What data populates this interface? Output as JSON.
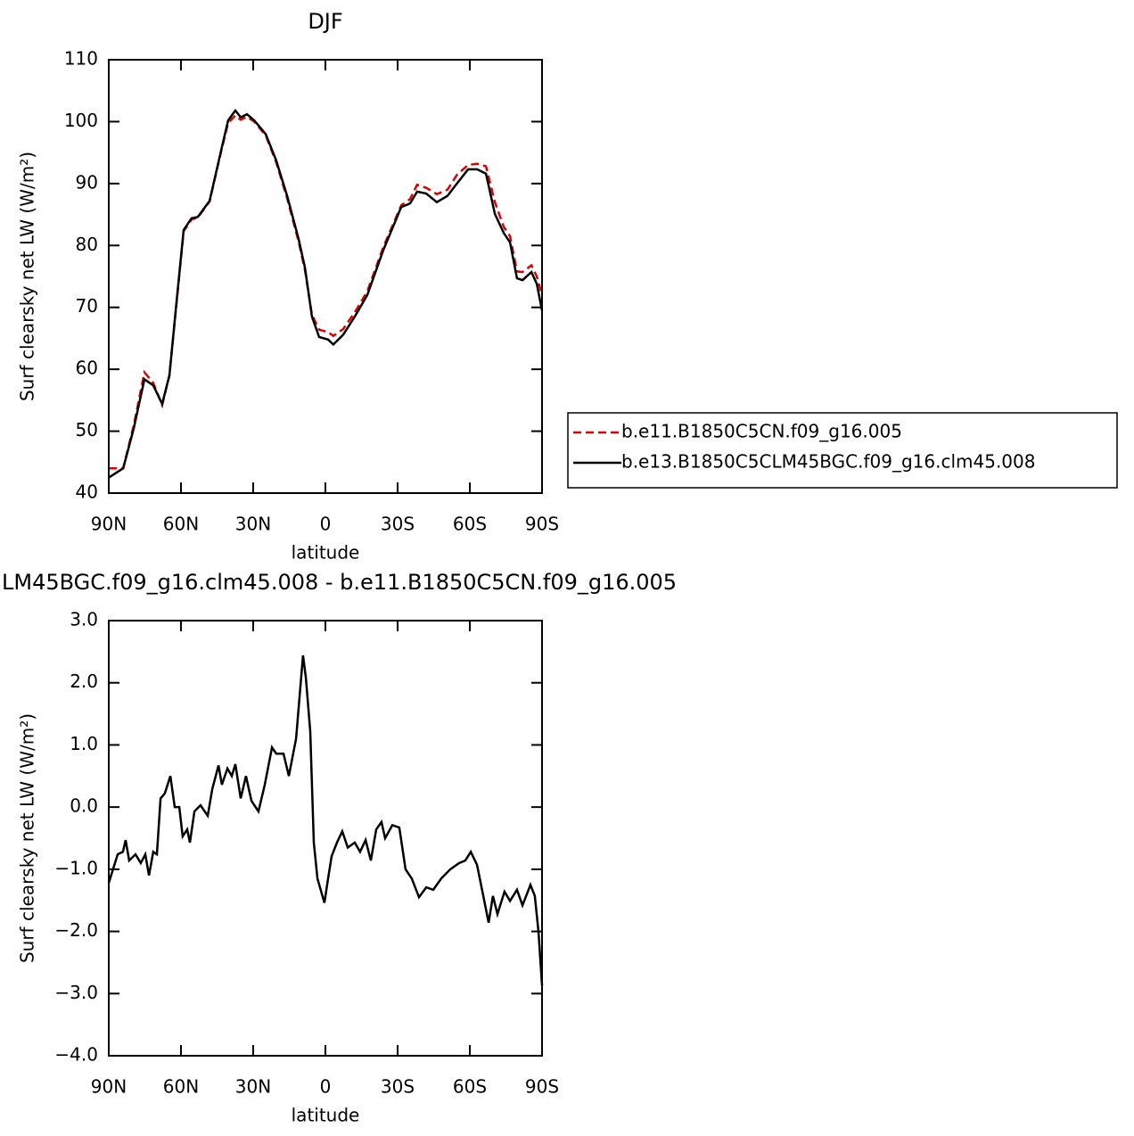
{
  "chart_data": [
    {
      "type": "line",
      "title": "DJF",
      "x_label": "latitude",
      "y_label": "Surf clearsky net LW (W/m²)",
      "xlim": [
        90,
        -90
      ],
      "xticks": [
        {
          "value": 90,
          "label": "90N"
        },
        {
          "value": 60,
          "label": "60N"
        },
        {
          "value": 30,
          "label": "30N"
        },
        0,
        {
          "value": -30,
          "label": "30S"
        },
        {
          "value": -60,
          "label": "60S"
        },
        {
          "value": -90,
          "label": "90S"
        }
      ],
      "ylim": [
        40,
        110
      ],
      "yticks": [
        40,
        50,
        60,
        70,
        80,
        90,
        100,
        110
      ],
      "legend_position": "right",
      "x": [
        90,
        84,
        79.6,
        75.2,
        71.5,
        67.8,
        64.8,
        61.9,
        58.9,
        55.6,
        53,
        48.1,
        43.3,
        40.4,
        37.4,
        35.2,
        32.6,
        29.6,
        24.8,
        20.4,
        15.9,
        11.1,
        8.5,
        5.6,
        2.6,
        -1.1,
        -3.3,
        -7.4,
        -12.2,
        -17.4,
        -24.1,
        -31.5,
        -35.2,
        -38.1,
        -41.9,
        -46.3,
        -50.7,
        -54.8,
        -59.3,
        -63,
        -66.7,
        -70.4,
        -74.1,
        -76.7,
        -79.6,
        -81.9,
        -85.6,
        -87.8,
        -90
      ],
      "series": [
        {
          "name": "b.e11.B1850C5CN.f09_g16.005",
          "color": "#e00000",
          "dashed": true,
          "values": [
            44,
            44,
            51,
            59.5,
            57.8,
            54.2,
            59,
            70.5,
            82.3,
            84.2,
            84.5,
            87.1,
            95.2,
            99.8,
            101,
            100.3,
            100.8,
            100,
            97.8,
            93.4,
            87.6,
            80.6,
            76,
            68.8,
            66.4,
            66,
            65.4,
            66.5,
            69.2,
            72.6,
            79.8,
            86.5,
            87.5,
            89.8,
            89.3,
            88.3,
            89,
            91.5,
            93,
            93.2,
            92.8,
            87,
            83,
            81.5,
            75.8,
            75.7,
            76.8,
            75,
            72
          ]
        },
        {
          "name": "b.e13.B1850C5CLM45BGC.f09_g16.clm45.008",
          "color": "#000000",
          "dashed": false,
          "values": [
            42.5,
            44,
            50.5,
            58.4,
            57.4,
            54.4,
            59,
            70.7,
            82.5,
            84.4,
            84.6,
            87.2,
            95.4,
            100.2,
            101.8,
            100.7,
            101.2,
            100.2,
            98,
            93.7,
            88,
            81,
            76.4,
            68.5,
            65.2,
            64.8,
            64,
            65.6,
            68.5,
            72,
            79.3,
            86.2,
            86.8,
            88.7,
            88.4,
            87,
            88,
            90.1,
            92.3,
            92.3,
            91.6,
            85.1,
            82,
            80.5,
            74.7,
            74.4,
            75.7,
            73.8,
            69.5
          ]
        }
      ]
    },
    {
      "type": "line",
      "title": "LM45BGC.f09_g16.clm45.008 - b.e11.B1850C5CN.f09_g16.005",
      "x_label": "latitude",
      "y_label": "Surf clearsky net LW (W/m²)",
      "xlim": [
        90,
        -90
      ],
      "xticks": [
        {
          "value": 90,
          "label": "90N"
        },
        {
          "value": 60,
          "label": "60N"
        },
        {
          "value": 30,
          "label": "30N"
        },
        0,
        {
          "value": -30,
          "label": "30S"
        },
        {
          "value": -60,
          "label": "60S"
        },
        {
          "value": -90,
          "label": "90S"
        }
      ],
      "ylim": [
        -4,
        3
      ],
      "yticks": [
        {
          "value": -4,
          "label": "−4.0"
        },
        {
          "value": -3,
          "label": "−3.0"
        },
        {
          "value": -2,
          "label": "−2.0"
        },
        {
          "value": -1,
          "label": "−1.0"
        },
        {
          "value": 0,
          "label": "0.0"
        },
        {
          "value": 1,
          "label": "1.0"
        },
        {
          "value": 2,
          "label": "2.0"
        },
        {
          "value": 3,
          "label": "3.0"
        }
      ],
      "x": [
        90,
        86.3,
        84.1,
        83,
        81.5,
        78.9,
        76.7,
        74.8,
        73.3,
        71.5,
        70,
        68.5,
        66.7,
        64.4,
        62.6,
        60.7,
        59.3,
        57.4,
        56.3,
        54.4,
        51.9,
        48.9,
        47,
        44.4,
        43,
        40.7,
        38.9,
        37.4,
        35.2,
        33,
        30.7,
        27.8,
        25.2,
        22.2,
        20.4,
        17.4,
        15.2,
        12.2,
        10.7,
        9.3,
        8.1,
        6.3,
        4.8,
        3.3,
        0.4,
        -1.1,
        -2.6,
        -4.8,
        -7,
        -9.3,
        -12.2,
        -14.4,
        -16.7,
        -18.9,
        -21.1,
        -23.3,
        -24.8,
        -27.8,
        -30.7,
        -33.3,
        -35.9,
        -38.9,
        -41.9,
        -44.8,
        -48.1,
        -51.9,
        -55.6,
        -58.1,
        -60.4,
        -63,
        -65.6,
        -67.8,
        -69.6,
        -71.5,
        -74.4,
        -76.7,
        -79.6,
        -81.9,
        -85.2,
        -87,
        -88.5,
        -90
      ],
      "series": [
        {
          "name": null,
          "color": "#000000",
          "dashed": false,
          "values": [
            -1.22,
            -0.76,
            -0.72,
            -0.53,
            -0.86,
            -0.76,
            -0.9,
            -0.76,
            -1.1,
            -0.72,
            -0.76,
            0.14,
            0.22,
            0.5,
            0,
            0,
            -0.47,
            -0.36,
            -0.57,
            -0.07,
            0.03,
            -0.14,
            0.29,
            0.67,
            0.36,
            0.62,
            0.5,
            0.69,
            0.14,
            0.5,
            0.1,
            -0.07,
            0.36,
            0.96,
            0.86,
            0.86,
            0.5,
            1.1,
            1.79,
            2.44,
            2.08,
            1.22,
            -0.57,
            -1.15,
            -1.54,
            -1.15,
            -0.79,
            -0.57,
            -0.39,
            -0.65,
            -0.57,
            -0.72,
            -0.53,
            -0.86,
            -0.36,
            -0.24,
            -0.5,
            -0.29,
            -0.33,
            -1,
            -1.15,
            -1.45,
            -1.29,
            -1.33,
            -1.15,
            -1,
            -0.9,
            -0.86,
            -0.72,
            -0.93,
            -1.43,
            -1.86,
            -1.43,
            -1.72,
            -1.36,
            -1.51,
            -1.33,
            -1.58,
            -1.25,
            -1.43,
            -2,
            -2.87
          ]
        }
      ]
    }
  ]
}
